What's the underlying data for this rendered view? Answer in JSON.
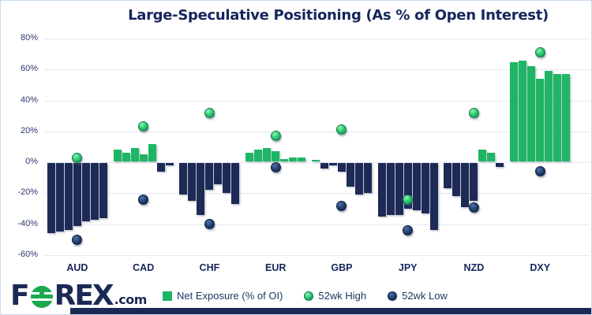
{
  "title": "Large-Speculative Positioning (As % of Open Interest)",
  "colors": {
    "green": "#1eb564",
    "navy": "#1d2a56",
    "grid": "#e3e9f1",
    "frame": "#c9d9ec",
    "text_navy": "#17255c"
  },
  "logo": {
    "f": "F",
    "rex": "REX",
    "com": ".com"
  },
  "legend": [
    {
      "label": "Net Exposure (% of OI)",
      "marker": "square",
      "color": "green"
    },
    {
      "label": "52wk High",
      "marker": "dot",
      "color": "green"
    },
    {
      "label": "52wk Low",
      "marker": "dot",
      "color": "navy"
    }
  ],
  "chart_data": {
    "type": "bar",
    "title": "Large-Speculative Positioning (As % of Open Interest)",
    "categories": [
      "AUD",
      "CAD",
      "CHF",
      "EUR",
      "GBP",
      "JPY",
      "NZD",
      "DXY"
    ],
    "series": [
      {
        "name": "Net Exposure (% of OI)",
        "type": "bar",
        "values_by_category": [
          [
            -46,
            -45,
            -44,
            -41,
            -38,
            -37,
            -36
          ],
          [
            8,
            6,
            9,
            5,
            12,
            -6,
            -2
          ],
          [
            -21,
            -25,
            -34,
            -18,
            -14,
            -20,
            -27
          ],
          [
            6,
            8,
            9,
            7,
            2,
            3,
            3
          ],
          [
            1,
            -4,
            -2,
            -6,
            -16,
            -21,
            -20
          ],
          [
            -35,
            -34,
            -34,
            -30,
            -31,
            -33,
            -44
          ],
          [
            -17,
            -22,
            -29,
            -25,
            8,
            6,
            -3
          ],
          [
            65,
            66,
            62,
            54,
            59,
            57,
            57
          ]
        ]
      },
      {
        "name": "52wk High",
        "type": "point",
        "values": [
          3,
          23,
          32,
          17,
          21,
          -24,
          32,
          71
        ]
      },
      {
        "name": "52wk Low",
        "type": "point",
        "values": [
          -50,
          -24,
          -40,
          -3,
          -28,
          -44,
          -29,
          -6
        ]
      }
    ],
    "y_axis": {
      "ticks": [
        "80%",
        "60%",
        "40%",
        "20%",
        "0%",
        "-20%",
        "-40%",
        "-60%"
      ],
      "tick_values": [
        80,
        60,
        40,
        20,
        0,
        -20,
        -40,
        -60
      ],
      "min": -60,
      "max": 80,
      "grid": true
    },
    "legend_position": "bottom"
  }
}
